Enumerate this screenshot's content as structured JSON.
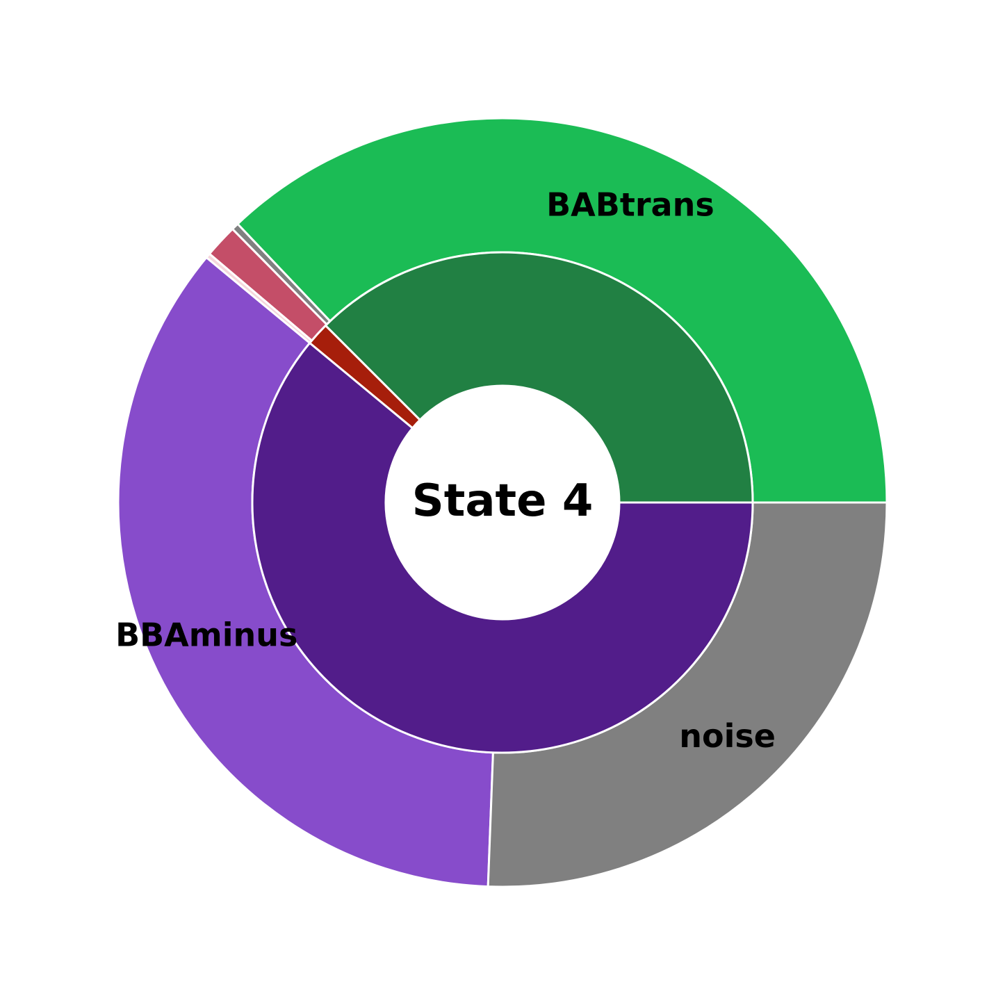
{
  "chart_data": {
    "type": "pie",
    "center_label": "State 4",
    "inner_ring": [
      {
        "value": 37.5,
        "color": "#218043"
      },
      {
        "value": 1.5,
        "color": "#a61e0b"
      },
      {
        "value": 61.0,
        "color": "#521d8a"
      }
    ],
    "outer_ring": [
      {
        "label": "BABtrans",
        "value": 37.1,
        "color": "#1bbc55"
      },
      {
        "label": "",
        "value": 0.3,
        "color": "#808080"
      },
      {
        "label": "",
        "value": 1.4,
        "color": "#c44e68"
      },
      {
        "label": "",
        "value": 0.2,
        "color": "#f5d7dc"
      },
      {
        "label": "BBAminus",
        "value": 35.4,
        "color": "#874ccb"
      },
      {
        "label": "noise",
        "value": 25.6,
        "color": "#808080"
      }
    ],
    "grid": false,
    "legend": "none"
  }
}
